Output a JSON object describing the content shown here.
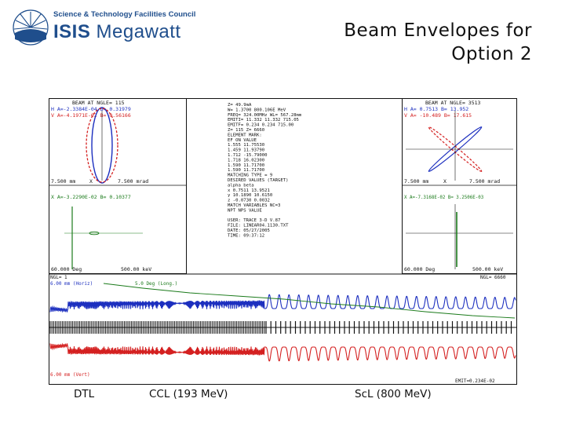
{
  "logo": {
    "org": "Science & Technology Facilities Council",
    "name": "ISIS",
    "product": "Megawatt"
  },
  "title": {
    "line1": "Beam Envelopes for",
    "line2": "Option 2"
  },
  "plot": {
    "left_panel": {
      "header": "BEAM AT NGLE= 115",
      "h_line": "H A=-2.3384E-04  B= 0.31979",
      "v_line": "V A=-4.1971E-02  B= 0.56166",
      "scale_left": "7.500 mm",
      "scale_x": "X",
      "scale_right": "7.500 mrad",
      "x_line": "X A=-3.2290E-02  B= 0.10377",
      "energy_left": "60.000 Deg",
      "energy_right": "500.00 keV"
    },
    "right_panel": {
      "header": "BEAM AT NGLE= 3513",
      "h_line": "H A= 0.7513  B= 13.952",
      "v_line": "V A= -10.489  B= 17.615",
      "scale_left": "7.500 mm",
      "scale_x": "X",
      "scale_right": "7.500 mrad",
      "x_line": "X A=-7.3168E-02  B= 3.2506E-03",
      "energy_left": "60.000 Deg",
      "energy_right": "500.00 keV"
    },
    "center_info": [
      "Z=       49.9mA",
      "W=   1.3700  800.106E MeV",
      "FREQ= 324.00MHz  WL= 567.28mm",
      "EMITI=  11.332   11.332  715.05",
      "EMITF=   0.234    0.234  715.00",
      "     Z= 115   Z= 6660",
      "ELEMENT MARK:",
      "EF ON      VALUE",
      "1.555   11.75530",
      "1.459   11.93790",
      "1.712  -15.79000",
      "1.718   16.02300",
      "1.590   11.71700",
      "1.590   11.71700",
      "MATCHING TYPE = 9",
      "DESIRED VALUES (TARGET)",
      "alpha        beta",
      "x   0.7511  13.9521",
      "y  10.1890  10.6150",
      "z  -0.0730   0.0032",
      "MATCH VARIABLES NC=3",
      "  NPT NPS    VALUE",
      "",
      "   USER: TRACE 3-D V.87",
      "   FILE: LINEAR04.1130.TXT",
      "   DATE: 05/27/2005",
      "   TIME: 09:37:12"
    ],
    "strip_top_left": "NGL=    1",
    "strip_top_right": "NGL= 6660",
    "strip_label_left": "6.00 mm (Horiz)",
    "strip_label_mid": "5.0 Deg (Long.)",
    "strip_label_bottom": "6.00 mm (Vert)",
    "strip_footer": "EMIT=0.234E-02"
  },
  "captions": {
    "dtl": "DTL",
    "ccl": "CCL (193  MeV)",
    "scl": "ScL (800 MeV)"
  },
  "colors": {
    "logo": "#1f4e8c",
    "horiz": "#1c2fbf",
    "vert": "#d42020",
    "long": "#1a7a1a",
    "ink": "#111111"
  }
}
